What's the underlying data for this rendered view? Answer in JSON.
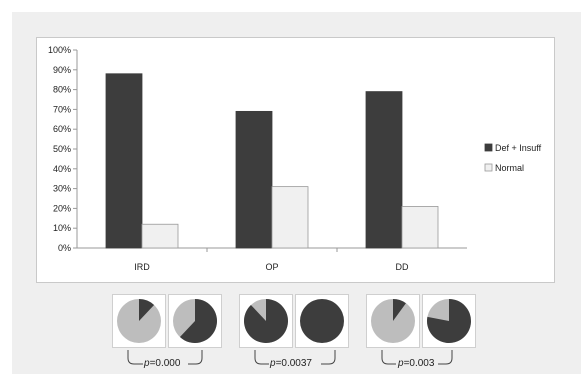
{
  "chart_data": [
    {
      "type": "bar",
      "categories": [
        "IRD",
        "OP",
        "DD"
      ],
      "series": [
        {
          "name": "Def + Insuff",
          "values": [
            0.88,
            0.69,
            0.79
          ],
          "color": "#3d3d3d"
        },
        {
          "name": "Normal",
          "values": [
            0.12,
            0.31,
            0.21
          ],
          "color": "#f0f0f0"
        }
      ],
      "ylim": [
        0,
        1
      ],
      "yticks": [
        "0%",
        "10%",
        "20%",
        "30%",
        "40%",
        "50%",
        "60%",
        "70%",
        "80%",
        "90%",
        "100%"
      ],
      "title": "",
      "xlabel": "",
      "ylabel": "",
      "grid": false,
      "legend": "right"
    },
    {
      "type": "pie",
      "pies": [
        {
          "dark_fraction": 0.12
        },
        {
          "dark_fraction": 0.62
        },
        {
          "dark_fraction": 0.88
        },
        {
          "dark_fraction": 1.0
        },
        {
          "dark_fraction": 0.1
        },
        {
          "dark_fraction": 0.78
        }
      ],
      "colors": {
        "dark": "#3d3d3d",
        "light": "#bdbdbd"
      },
      "pvalues": [
        {
          "prefix": "p",
          "text": "=0.000"
        },
        {
          "prefix": "p",
          "text": "=0.0037"
        },
        {
          "prefix": "p",
          "text": "=0.003"
        }
      ]
    }
  ]
}
